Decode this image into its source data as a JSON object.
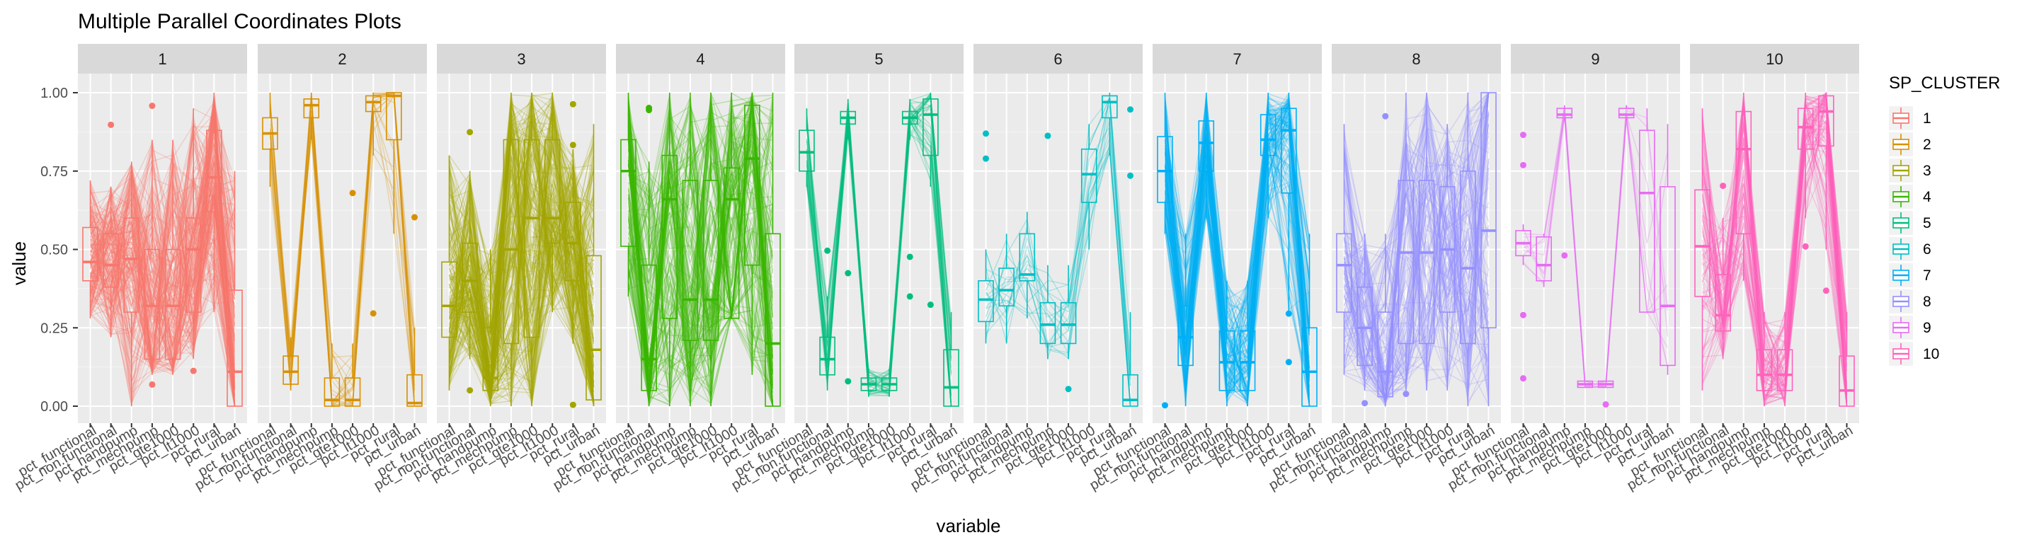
{
  "chart_data": {
    "type": "parallel-coordinates-boxplot",
    "title": "Multiple Parallel Coordinates Plots",
    "xlabel": "variable",
    "ylabel": "value",
    "ylim": [
      0,
      1
    ],
    "y_ticks": [
      "0.00",
      "0.25",
      "0.50",
      "0.75",
      "1.00"
    ],
    "y_tick_values": [
      0,
      0.25,
      0.5,
      0.75,
      1
    ],
    "variables": [
      "pct_functional",
      "pct_non.functional",
      "pct_handpump",
      "pct_mechpump",
      "pct_gte1000",
      "pct_lt1000",
      "pct_rural",
      "pct_urban"
    ],
    "legend": {
      "title": "SP_CLUSTER",
      "position": "right",
      "entries": [
        "1",
        "2",
        "3",
        "4",
        "5",
        "6",
        "7",
        "8",
        "9",
        "10"
      ]
    },
    "grid": true,
    "panels": [
      {
        "label": "1",
        "color": "#F8766D",
        "density": 200,
        "boxes": [
          [
            0.28,
            0.4,
            0.46,
            0.57,
            0.72
          ],
          [
            0.22,
            0.38,
            0.45,
            0.55,
            0.7
          ],
          [
            0.0,
            0.3,
            0.47,
            0.6,
            0.78
          ],
          [
            0.1,
            0.15,
            0.32,
            0.5,
            0.85
          ],
          [
            0.1,
            0.15,
            0.32,
            0.5,
            0.85
          ],
          [
            0.15,
            0.3,
            0.5,
            0.6,
            0.95
          ],
          [
            0.3,
            0.62,
            0.73,
            0.88,
            1.0
          ],
          [
            0.0,
            0.0,
            0.11,
            0.37,
            0.75
          ]
        ]
      },
      {
        "label": "2",
        "color": "#D89000",
        "density": 25,
        "boxes": [
          [
            0.7,
            0.82,
            0.87,
            0.92,
            1.0
          ],
          [
            0.05,
            0.07,
            0.11,
            0.16,
            0.22
          ],
          [
            0.85,
            0.92,
            0.96,
            0.98,
            1.0
          ],
          [
            0.0,
            0.0,
            0.02,
            0.09,
            0.2
          ],
          [
            0.0,
            0.0,
            0.02,
            0.09,
            0.2
          ],
          [
            0.8,
            0.94,
            0.97,
            0.99,
            1.0
          ],
          [
            0.55,
            0.85,
            0.99,
            1.0,
            1.0
          ],
          [
            0.0,
            0.0,
            0.01,
            0.1,
            0.25
          ]
        ]
      },
      {
        "label": "3",
        "color": "#A3A500",
        "density": 200,
        "boxes": [
          [
            0.05,
            0.22,
            0.32,
            0.46,
            0.8
          ],
          [
            0.15,
            0.3,
            0.4,
            0.52,
            0.75
          ],
          [
            0.0,
            0.05,
            0.09,
            0.25,
            0.5
          ],
          [
            0.0,
            0.2,
            0.5,
            0.85,
            1.0
          ],
          [
            0.0,
            0.22,
            0.6,
            0.85,
            1.0
          ],
          [
            0.3,
            0.52,
            0.6,
            0.85,
            1.0
          ],
          [
            0.2,
            0.4,
            0.52,
            0.65,
            0.82
          ],
          [
            0.0,
            0.02,
            0.18,
            0.48,
            0.9
          ]
        ]
      },
      {
        "label": "4",
        "color": "#39B600",
        "density": 150,
        "boxes": [
          [
            0.35,
            0.51,
            0.75,
            0.85,
            1.0
          ],
          [
            0.0,
            0.05,
            0.15,
            0.45,
            0.78
          ],
          [
            0.0,
            0.28,
            0.66,
            0.8,
            1.0
          ],
          [
            0.0,
            0.21,
            0.34,
            0.72,
            1.0
          ],
          [
            0.0,
            0.21,
            0.34,
            0.72,
            1.0
          ],
          [
            0.3,
            0.28,
            0.66,
            0.76,
            1.0
          ],
          [
            0.1,
            0.45,
            0.79,
            0.96,
            1.0
          ],
          [
            0.0,
            0.0,
            0.2,
            0.55,
            1.0
          ]
        ]
      },
      {
        "label": "5",
        "color": "#00BF7D",
        "density": 40,
        "boxes": [
          [
            0.7,
            0.75,
            0.81,
            0.88,
            0.95
          ],
          [
            0.05,
            0.1,
            0.15,
            0.22,
            0.35
          ],
          [
            0.85,
            0.9,
            0.92,
            0.94,
            0.98
          ],
          [
            0.03,
            0.05,
            0.07,
            0.09,
            0.12
          ],
          [
            0.03,
            0.05,
            0.07,
            0.09,
            0.12
          ],
          [
            0.85,
            0.9,
            0.92,
            0.94,
            0.98
          ],
          [
            0.7,
            0.8,
            0.93,
            0.98,
            1.0
          ],
          [
            0.0,
            0.0,
            0.06,
            0.18,
            0.3
          ]
        ]
      },
      {
        "label": "6",
        "color": "#00BFC4",
        "density": 20,
        "boxes": [
          [
            0.2,
            0.27,
            0.34,
            0.4,
            0.5
          ],
          [
            0.2,
            0.32,
            0.37,
            0.44,
            0.55
          ],
          [
            0.28,
            0.4,
            0.42,
            0.55,
            0.62
          ],
          [
            0.15,
            0.2,
            0.26,
            0.33,
            0.45
          ],
          [
            0.15,
            0.2,
            0.26,
            0.33,
            0.45
          ],
          [
            0.5,
            0.65,
            0.74,
            0.82,
            0.9
          ],
          [
            0.8,
            0.92,
            0.97,
            0.99,
            1.0
          ],
          [
            0.0,
            0.0,
            0.02,
            0.1,
            0.3
          ]
        ]
      },
      {
        "label": "7",
        "color": "#00B0F6",
        "density": 120,
        "boxes": [
          [
            0.55,
            0.65,
            0.75,
            0.86,
            1.0
          ],
          [
            0.0,
            0.13,
            0.22,
            0.32,
            0.55
          ],
          [
            0.6,
            0.75,
            0.84,
            0.91,
            1.0
          ],
          [
            0.0,
            0.05,
            0.14,
            0.24,
            0.4
          ],
          [
            0.0,
            0.05,
            0.14,
            0.24,
            0.4
          ],
          [
            0.6,
            0.8,
            0.85,
            0.93,
            1.0
          ],
          [
            0.3,
            0.68,
            0.88,
            0.95,
            1.0
          ],
          [
            0.0,
            0.0,
            0.11,
            0.25,
            0.55
          ]
        ]
      },
      {
        "label": "8",
        "color": "#9590FF",
        "density": 120,
        "boxes": [
          [
            0.1,
            0.3,
            0.45,
            0.55,
            0.9
          ],
          [
            0.05,
            0.13,
            0.25,
            0.38,
            0.55
          ],
          [
            0.0,
            0.03,
            0.11,
            0.3,
            0.55
          ],
          [
            0.05,
            0.2,
            0.49,
            0.72,
            1.0
          ],
          [
            0.05,
            0.2,
            0.49,
            0.72,
            1.0
          ],
          [
            0.05,
            0.3,
            0.5,
            0.7,
            0.9
          ],
          [
            0.0,
            0.2,
            0.44,
            0.75,
            1.0
          ],
          [
            0.0,
            0.25,
            0.56,
            1.0,
            1.0
          ]
        ]
      },
      {
        "label": "9",
        "color": "#E76BF3",
        "density": 10,
        "boxes": [
          [
            0.45,
            0.48,
            0.52,
            0.56,
            0.58
          ],
          [
            0.38,
            0.4,
            0.45,
            0.54,
            0.55
          ],
          [
            0.91,
            0.92,
            0.93,
            0.95,
            0.96
          ],
          [
            0.06,
            0.06,
            0.07,
            0.08,
            0.08
          ],
          [
            0.06,
            0.06,
            0.07,
            0.08,
            0.08
          ],
          [
            0.91,
            0.92,
            0.93,
            0.95,
            0.96
          ],
          [
            0.3,
            0.3,
            0.68,
            0.88,
            0.95
          ],
          [
            0.1,
            0.13,
            0.32,
            0.7,
            0.9
          ]
        ]
      },
      {
        "label": "10",
        "color": "#FF62BC",
        "density": 90,
        "boxes": [
          [
            0.05,
            0.35,
            0.51,
            0.69,
            0.95
          ],
          [
            0.15,
            0.24,
            0.29,
            0.42,
            0.6
          ],
          [
            0.4,
            0.55,
            0.82,
            0.94,
            1.0
          ],
          [
            0.0,
            0.05,
            0.1,
            0.18,
            0.3
          ],
          [
            0.0,
            0.05,
            0.1,
            0.18,
            0.3
          ],
          [
            0.6,
            0.82,
            0.89,
            0.95,
            1.0
          ],
          [
            0.5,
            0.83,
            0.94,
            0.99,
            1.0
          ],
          [
            0.0,
            0.0,
            0.05,
            0.16,
            0.3
          ]
        ]
      }
    ]
  }
}
